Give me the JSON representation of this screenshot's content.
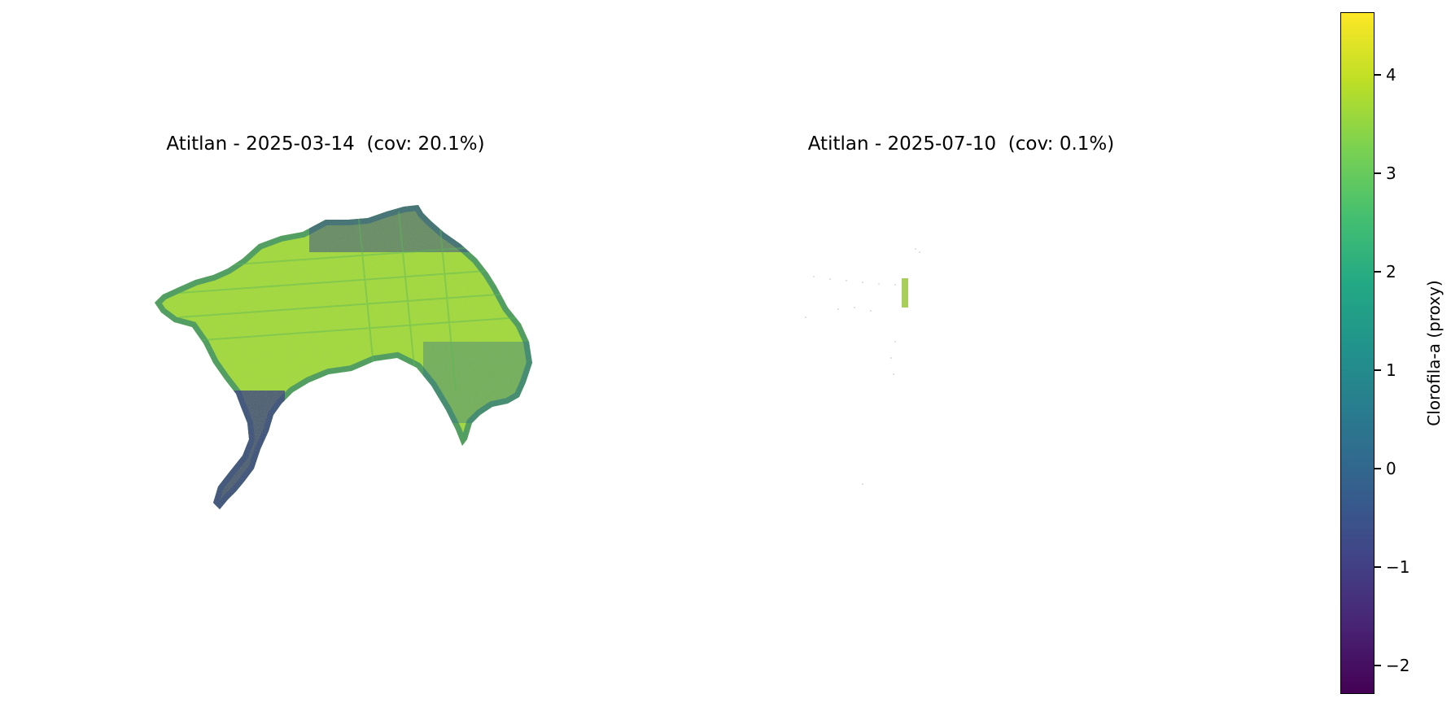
{
  "chart_data": [
    {
      "type": "heatmap",
      "title": "Atitlan - 2025-03-14  (cov: 20.1%)",
      "panel": "left"
    },
    {
      "type": "heatmap",
      "title": "Atitlan - 2025-07-10  (cov: 0.1%)",
      "panel": "right"
    }
  ],
  "colorbar": {
    "label": "Clorofila-a (proxy)",
    "colormap": "viridis",
    "vmin": -2.3,
    "vmax": 4.65,
    "ticks": [
      {
        "value": 4,
        "label": "4"
      },
      {
        "value": 3,
        "label": "3"
      },
      {
        "value": 2,
        "label": "2"
      },
      {
        "value": 1,
        "label": "1"
      },
      {
        "value": 0,
        "label": "0"
      },
      {
        "value": -1,
        "label": "−1"
      },
      {
        "value": -2,
        "label": "−2"
      }
    ]
  }
}
